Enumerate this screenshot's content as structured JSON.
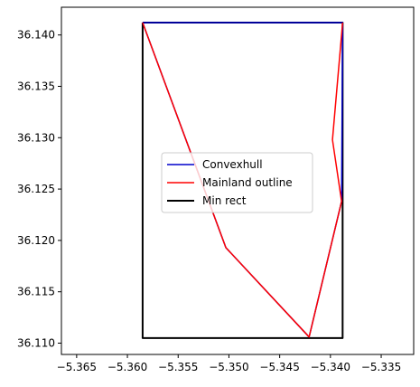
{
  "chart_data": {
    "type": "line",
    "xlim": [
      -5.3665,
      -5.3318
    ],
    "ylim": [
      36.1089,
      36.1427
    ],
    "x_ticks": [
      -5.365,
      -5.36,
      -5.355,
      -5.35,
      -5.345,
      -5.34,
      -5.335
    ],
    "x_tick_labels": [
      "−5.365",
      "−5.360",
      "−5.355",
      "−5.350",
      "−5.345",
      "−5.340",
      "−5.335"
    ],
    "y_ticks": [
      36.11,
      36.115,
      36.12,
      36.125,
      36.13,
      36.135,
      36.14
    ],
    "y_tick_labels": [
      "36.110",
      "36.115",
      "36.120",
      "36.125",
      "36.130",
      "36.135",
      "36.140"
    ],
    "grid": false,
    "legend_position": "center",
    "series": [
      {
        "name": "Convexhull",
        "color": "#0000cc",
        "line_width": 1.5,
        "points": [
          [
            -5.3585,
            36.1412
          ],
          [
            -5.3503,
            36.1193
          ],
          [
            -5.3421,
            36.1106
          ],
          [
            -5.3389,
            36.1238
          ],
          [
            -5.3388,
            36.1412
          ],
          [
            -5.3585,
            36.1412
          ]
        ]
      },
      {
        "name": "Mainland outline",
        "color": "#ff0000",
        "line_width": 1.5,
        "points": [
          [
            -5.3585,
            36.1412
          ],
          [
            -5.3503,
            36.1193
          ],
          [
            -5.3421,
            36.1106
          ],
          [
            -5.3389,
            36.1238
          ],
          [
            -5.3398,
            36.1298
          ],
          [
            -5.3388,
            36.1412
          ]
        ]
      },
      {
        "name": "Min rect",
        "color": "#000000",
        "line_width": 2,
        "points": [
          [
            -5.3585,
            36.1412
          ],
          [
            -5.3388,
            36.1412
          ],
          [
            -5.3388,
            36.1105
          ],
          [
            -5.3585,
            36.1105
          ],
          [
            -5.3585,
            36.1412
          ]
        ]
      }
    ]
  }
}
